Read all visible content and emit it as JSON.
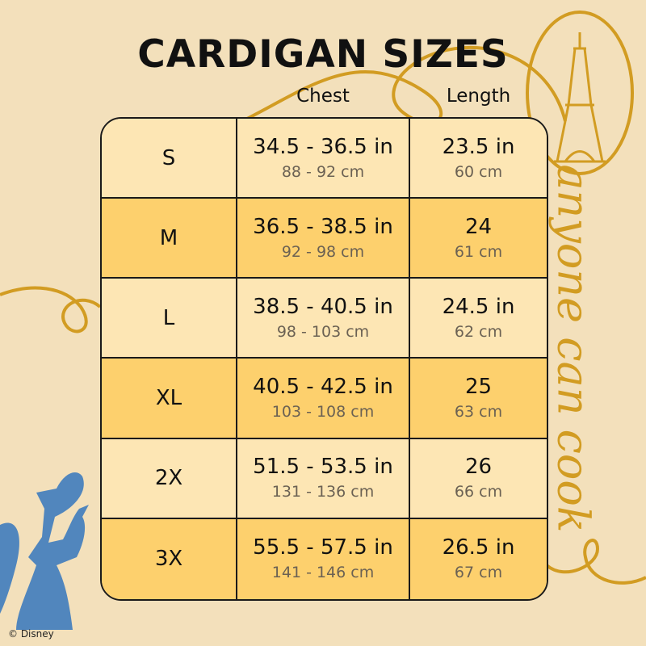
{
  "title": "CARDIGAN SIZES",
  "columns": {
    "chest": "Chest",
    "length": "Length"
  },
  "rows": [
    {
      "size": "S",
      "chest_in": "34.5 - 36.5 in",
      "chest_cm": "88 - 92 cm",
      "length_in": "23.5 in",
      "length_cm": "60 cm"
    },
    {
      "size": "M",
      "chest_in": "36.5 - 38.5 in",
      "chest_cm": "92 - 98 cm",
      "length_in": "24",
      "length_cm": "61 cm"
    },
    {
      "size": "L",
      "chest_in": "38.5 - 40.5 in",
      "chest_cm": "98 - 103 cm",
      "length_in": "24.5 in",
      "length_cm": "62 cm"
    },
    {
      "size": "XL",
      "chest_in": "40.5 - 42.5 in",
      "chest_cm": "103 - 108 cm",
      "length_in": "25",
      "length_cm": "63 cm"
    },
    {
      "size": "2X",
      "chest_in": "51.5 - 53.5 in",
      "chest_cm": "131 - 136 cm",
      "length_in": "26",
      "length_cm": "66 cm"
    },
    {
      "size": "3X",
      "chest_in": "55.5 - 57.5 in",
      "chest_cm": "141 - 146 cm",
      "length_in": "26.5 in",
      "length_cm": "67 cm"
    }
  ],
  "decor": {
    "script_text": "anyone can cook",
    "copyright": "© Disney"
  },
  "colors": {
    "background": "#f3e0bb",
    "row_light": "#fde6b4",
    "row_dark": "#fdd06d",
    "gold": "#d29c22",
    "rat_blue": "#5186bd"
  }
}
